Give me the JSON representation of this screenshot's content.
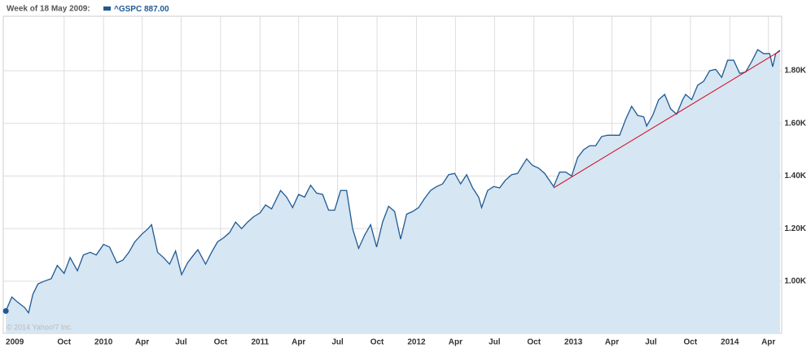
{
  "chart_data": {
    "type": "area",
    "header": "Week of 18 May 2009:",
    "header_value_label": "887.00",
    "credit": "© 2014 Yahoo!7 Inc.",
    "grid": true,
    "fill_color": "#d6e6f2",
    "xlim": [
      "2009-05-12",
      "2014-05-02"
    ],
    "ylim": [
      802,
      2007
    ],
    "yticks": [
      {
        "value": 1000,
        "label": "1.00K"
      },
      {
        "value": 1200,
        "label": "1.20K"
      },
      {
        "value": 1400,
        "label": "1.40K"
      },
      {
        "value": 1600,
        "label": "1.60K"
      },
      {
        "value": 1800,
        "label": "1.80K"
      }
    ],
    "xticks": [
      {
        "value": "2009-05-18",
        "label": "2009"
      },
      {
        "value": "2009-10-01",
        "label": "Oct"
      },
      {
        "value": "2010-01-01",
        "label": "2010"
      },
      {
        "value": "2010-04-01",
        "label": "Apr"
      },
      {
        "value": "2010-07-01",
        "label": "Jul"
      },
      {
        "value": "2010-10-01",
        "label": "Oct"
      },
      {
        "value": "2011-01-01",
        "label": "2011"
      },
      {
        "value": "2011-04-01",
        "label": "Apr"
      },
      {
        "value": "2011-07-01",
        "label": "Jul"
      },
      {
        "value": "2011-10-01",
        "label": "Oct"
      },
      {
        "value": "2012-01-01",
        "label": "2012"
      },
      {
        "value": "2012-04-01",
        "label": "Apr"
      },
      {
        "value": "2012-07-01",
        "label": "Jul"
      },
      {
        "value": "2012-10-01",
        "label": "Oct"
      },
      {
        "value": "2013-01-01",
        "label": "2013"
      },
      {
        "value": "2013-04-01",
        "label": "Apr"
      },
      {
        "value": "2013-07-01",
        "label": "Jul"
      },
      {
        "value": "2013-10-01",
        "label": "Oct"
      },
      {
        "value": "2014-01-01",
        "label": "2014"
      },
      {
        "value": "2014-04-01",
        "label": "Apr"
      }
    ],
    "x": [
      "2009-05-18",
      "2009-06-01",
      "2009-06-15",
      "2009-07-01",
      "2009-07-10",
      "2009-07-20",
      "2009-08-01",
      "2009-08-15",
      "2009-09-01",
      "2009-09-15",
      "2009-10-01",
      "2009-10-15",
      "2009-11-01",
      "2009-11-15",
      "2009-12-01",
      "2009-12-15",
      "2010-01-01",
      "2010-01-15",
      "2010-02-01",
      "2010-02-15",
      "2010-03-01",
      "2010-03-15",
      "2010-04-01",
      "2010-04-15",
      "2010-04-23",
      "2010-05-07",
      "2010-05-21",
      "2010-06-04",
      "2010-06-18",
      "2010-07-02",
      "2010-07-16",
      "2010-07-30",
      "2010-08-09",
      "2010-08-27",
      "2010-09-10",
      "2010-09-24",
      "2010-10-08",
      "2010-10-22",
      "2010-11-05",
      "2010-11-19",
      "2010-12-03",
      "2010-12-17",
      "2011-01-01",
      "2011-01-14",
      "2011-01-28",
      "2011-02-18",
      "2011-03-04",
      "2011-03-18",
      "2011-04-01",
      "2011-04-15",
      "2011-04-29",
      "2011-05-13",
      "2011-05-27",
      "2011-06-10",
      "2011-06-24",
      "2011-07-08",
      "2011-07-22",
      "2011-08-05",
      "2011-08-19",
      "2011-09-02",
      "2011-09-16",
      "2011-09-30",
      "2011-10-14",
      "2011-10-28",
      "2011-11-11",
      "2011-11-25",
      "2011-12-09",
      "2011-12-23",
      "2012-01-06",
      "2012-01-20",
      "2012-02-03",
      "2012-02-17",
      "2012-03-02",
      "2012-03-16",
      "2012-03-30",
      "2012-04-13",
      "2012-04-27",
      "2012-05-11",
      "2012-05-25",
      "2012-06-01",
      "2012-06-15",
      "2012-06-29",
      "2012-07-13",
      "2012-07-27",
      "2012-08-10",
      "2012-08-24",
      "2012-09-14",
      "2012-09-28",
      "2012-10-12",
      "2012-10-26",
      "2012-11-16",
      "2012-11-30",
      "2012-12-14",
      "2012-12-28",
      "2013-01-11",
      "2013-01-25",
      "2013-02-08",
      "2013-02-22",
      "2013-03-08",
      "2013-03-22",
      "2013-04-05",
      "2013-04-19",
      "2013-05-03",
      "2013-05-17",
      "2013-05-31",
      "2013-06-14",
      "2013-06-21",
      "2013-07-05",
      "2013-07-19",
      "2013-08-02",
      "2013-08-16",
      "2013-08-30",
      "2013-09-13",
      "2013-09-20",
      "2013-10-04",
      "2013-10-18",
      "2013-11-01",
      "2013-11-15",
      "2013-11-29",
      "2013-12-13",
      "2013-12-27",
      "2014-01-10",
      "2014-01-24",
      "2014-02-07",
      "2014-02-21",
      "2014-03-07",
      "2014-03-21",
      "2014-04-04",
      "2014-04-11",
      "2014-04-18",
      "2014-04-28"
    ],
    "series": [
      {
        "name": "^GSPC",
        "color": "#1f5a93",
        "values": [
          887,
          940,
          920,
          900,
          880,
          950,
          990,
          1000,
          1010,
          1060,
          1030,
          1090,
          1040,
          1100,
          1110,
          1100,
          1140,
          1130,
          1070,
          1080,
          1110,
          1150,
          1180,
          1200,
          1215,
          1110,
          1090,
          1065,
          1115,
          1025,
          1070,
          1100,
          1120,
          1065,
          1110,
          1150,
          1165,
          1185,
          1225,
          1200,
          1225,
          1245,
          1260,
          1290,
          1275,
          1345,
          1320,
          1280,
          1330,
          1320,
          1365,
          1335,
          1330,
          1270,
          1270,
          1345,
          1345,
          1200,
          1125,
          1175,
          1215,
          1130,
          1225,
          1285,
          1265,
          1160,
          1255,
          1265,
          1280,
          1315,
          1345,
          1360,
          1370,
          1405,
          1410,
          1370,
          1405,
          1355,
          1320,
          1280,
          1345,
          1360,
          1355,
          1385,
          1405,
          1410,
          1465,
          1440,
          1430,
          1410,
          1360,
          1415,
          1415,
          1400,
          1470,
          1500,
          1515,
          1515,
          1550,
          1555,
          1555,
          1555,
          1615,
          1665,
          1630,
          1625,
          1590,
          1630,
          1690,
          1710,
          1655,
          1635,
          1690,
          1710,
          1690,
          1745,
          1760,
          1800,
          1805,
          1775,
          1840,
          1840,
          1790,
          1795,
          1835,
          1880,
          1865,
          1865,
          1815,
          1865,
          1878
        ]
      }
    ],
    "trendline": {
      "color": "#d0021b",
      "x": [
        "2012-11-16",
        "2014-04-28"
      ],
      "values": [
        1355,
        1875
      ]
    }
  }
}
